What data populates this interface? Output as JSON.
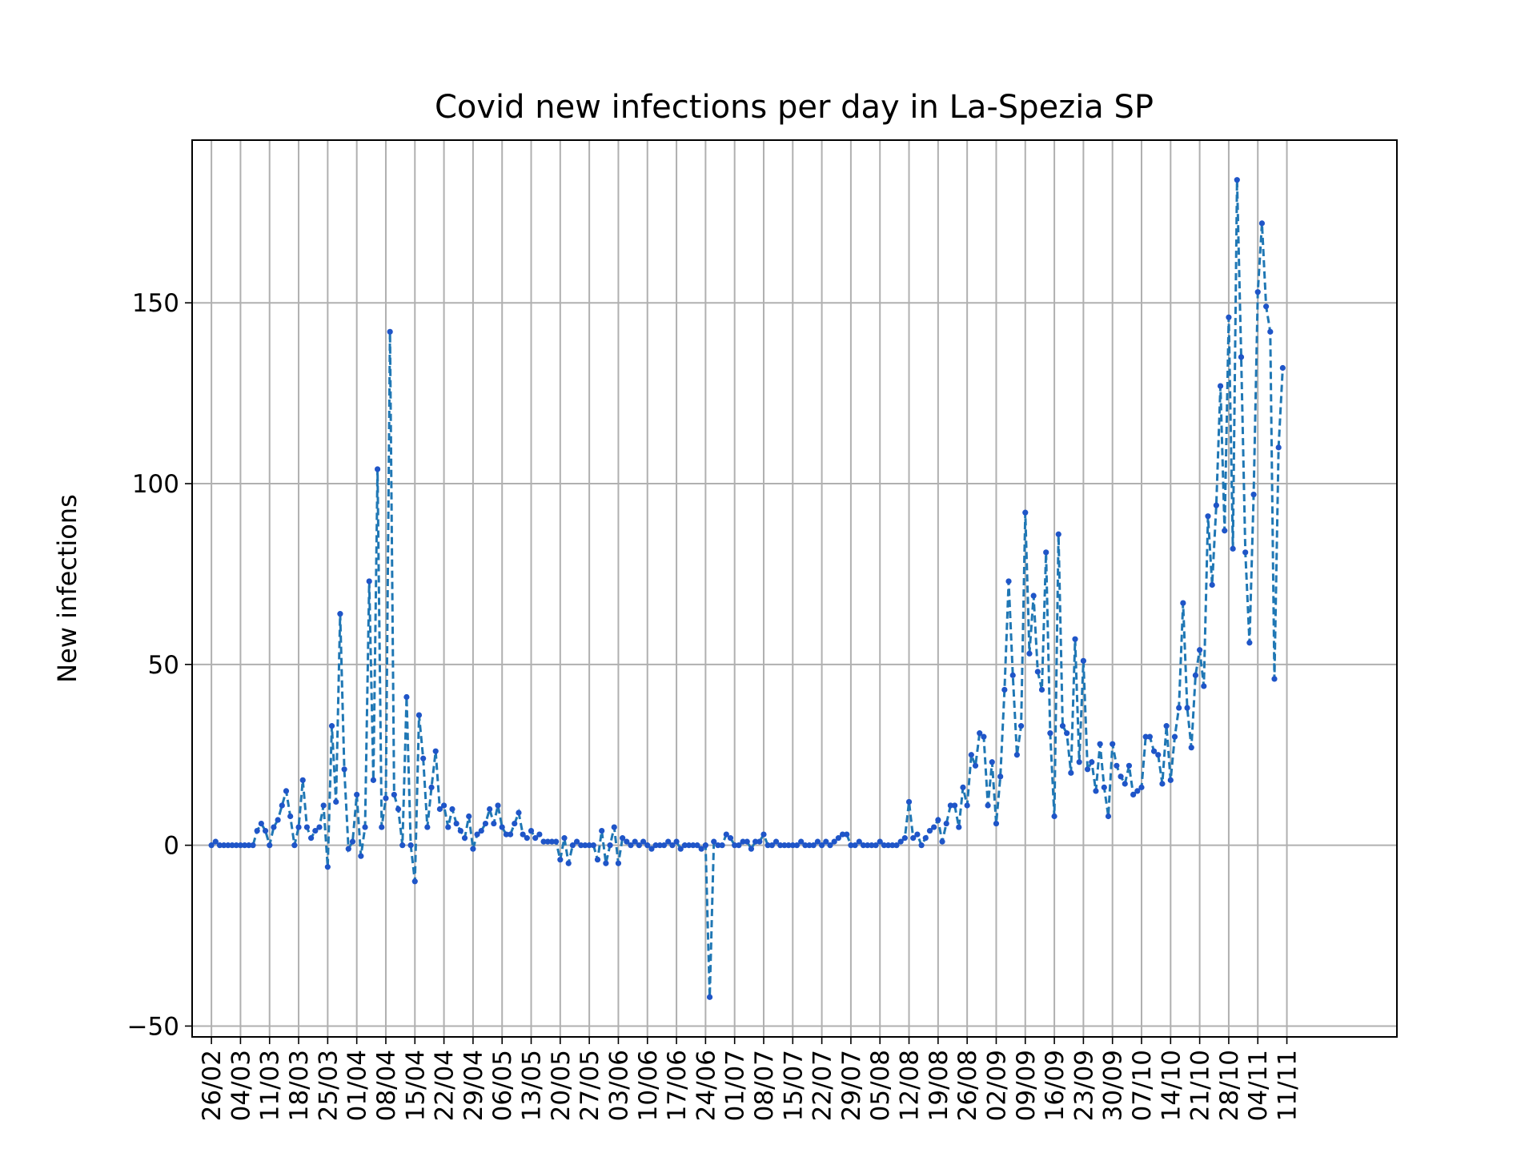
{
  "chart_data": {
    "type": "line",
    "title": "Covid new infections per day in La-Spezia SP",
    "xlabel": "",
    "ylabel": "New infections",
    "ylim": [
      -53,
      195
    ],
    "grid": true,
    "legend": "none",
    "line_color": "#1f77b4",
    "marker_color": "#1f55c8",
    "line_style": "dashed",
    "marker": "dot",
    "x_start": "26/02",
    "x_tick_labels": [
      "26/02",
      "04/03",
      "11/03",
      "18/03",
      "25/03",
      "01/04",
      "08/04",
      "15/04",
      "22/04",
      "29/04",
      "06/05",
      "13/05",
      "20/05",
      "27/05",
      "03/06",
      "10/06",
      "17/06",
      "24/06",
      "01/07",
      "08/07",
      "15/07",
      "22/07",
      "29/07",
      "05/08",
      "12/08",
      "19/08",
      "26/08",
      "02/09",
      "09/09",
      "16/09",
      "23/09",
      "30/09",
      "07/10",
      "14/10",
      "21/10",
      "28/10",
      "04/11",
      "11/11"
    ],
    "y_ticks": [
      -50,
      0,
      50,
      100,
      150
    ],
    "y_tick_labels": [
      "−50",
      "0",
      "50",
      "100",
      "150"
    ],
    "series": [
      {
        "values": [
          0,
          1,
          0,
          0,
          0,
          0,
          0,
          0,
          0,
          0,
          0,
          4,
          6,
          4,
          0,
          5,
          7,
          11,
          15,
          8,
          0,
          5,
          18,
          5,
          2,
          4,
          5,
          11,
          -6,
          33,
          12,
          64,
          21,
          -1,
          1,
          14,
          -3,
          5,
          73,
          18,
          104,
          5,
          13,
          142,
          14,
          10,
          0,
          41,
          0,
          -10,
          36,
          24,
          5,
          16,
          26,
          10,
          11,
          5,
          10,
          6,
          4,
          2,
          8,
          -1,
          3,
          4,
          6,
          10,
          6,
          11,
          5,
          3,
          3,
          6,
          9,
          3,
          2,
          4,
          2,
          3,
          1,
          1,
          1,
          1,
          -4,
          2,
          -5,
          0,
          1,
          0,
          0,
          0,
          0,
          -4,
          4,
          -5,
          0,
          5,
          -5,
          2,
          1,
          0,
          1,
          0,
          1,
          0,
          -1,
          0,
          0,
          0,
          1,
          0,
          1,
          -1,
          0,
          0,
          0,
          0,
          -1,
          0,
          -42,
          1,
          0,
          0,
          3,
          2,
          0,
          0,
          1,
          1,
          -1,
          1,
          1,
          3,
          0,
          0,
          1,
          0,
          0,
          0,
          0,
          0,
          1,
          0,
          0,
          0,
          1,
          0,
          1,
          0,
          1,
          2,
          3,
          3,
          0,
          0,
          1,
          0,
          0,
          0,
          0,
          1,
          0,
          0,
          0,
          0,
          1,
          2,
          12,
          2,
          3,
          0,
          2,
          4,
          5,
          7,
          1,
          6,
          11,
          11,
          5,
          16,
          11,
          25,
          22,
          31,
          30,
          11,
          23,
          6,
          19,
          43,
          73,
          47,
          25,
          33,
          92,
          53,
          69,
          48,
          43,
          81,
          31,
          8,
          86,
          33,
          31,
          20,
          57,
          23,
          51,
          21,
          23,
          15,
          28,
          16,
          8,
          28,
          22,
          19,
          17,
          22,
          14,
          15,
          16,
          30,
          30,
          26,
          25,
          17,
          33,
          18,
          30,
          38,
          67,
          38,
          27,
          47,
          54,
          44,
          91,
          72,
          94,
          127,
          87,
          146,
          82,
          184,
          135,
          81,
          56,
          97,
          153,
          172,
          149,
          142,
          46,
          110,
          132
        ]
      }
    ]
  }
}
